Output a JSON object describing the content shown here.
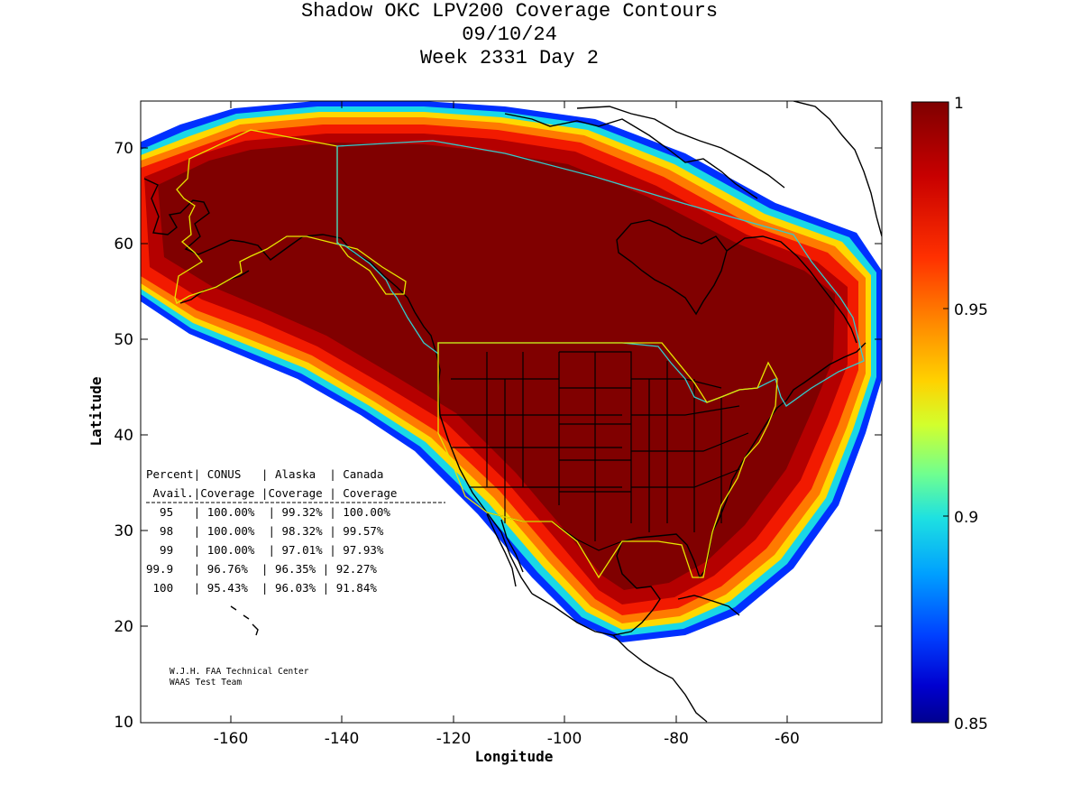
{
  "title": {
    "line1": "Shadow OKC LPV200 Coverage Contours",
    "line2": "09/10/24",
    "line3": "Week 2331 Day 2"
  },
  "axes": {
    "xlabel": "Longitude",
    "ylabel": "Latitude",
    "x_ticks": [
      "-160",
      "-140",
      "-120",
      "-100",
      "-80",
      "-60"
    ],
    "y_ticks": [
      "70",
      "60",
      "50",
      "40",
      "30",
      "20",
      "10"
    ]
  },
  "colorbar": {
    "ticks": [
      "1",
      "0.95",
      "0.9",
      "0.85"
    ],
    "colors": [
      "#7f0000",
      "#d40000",
      "#ff3300",
      "#ff8800",
      "#ffcc00",
      "#e6ff19",
      "#7fff80",
      "#19e6e6",
      "#00a6ff",
      "#0050ff",
      "#0010d0",
      "#00008f"
    ]
  },
  "table": {
    "header1": "Percent| CONUS   | Alaska  | Canada",
    "header2": " Avail.|Coverage |Coverage | Coverage",
    "rows": [
      "  95   | 100.00%  | 99.32% | 100.00%",
      "  98   | 100.00%  | 98.32% | 99.57%",
      "  99   | 100.00%  | 97.01% | 97.93%",
      "99.9   | 96.76%  | 96.35% | 92.27%",
      " 100   | 95.43%  | 96.03% | 91.84%"
    ]
  },
  "credit": {
    "line1": "W.J.H. FAA Technical Center",
    "line2": "WAAS Test Team"
  }
}
